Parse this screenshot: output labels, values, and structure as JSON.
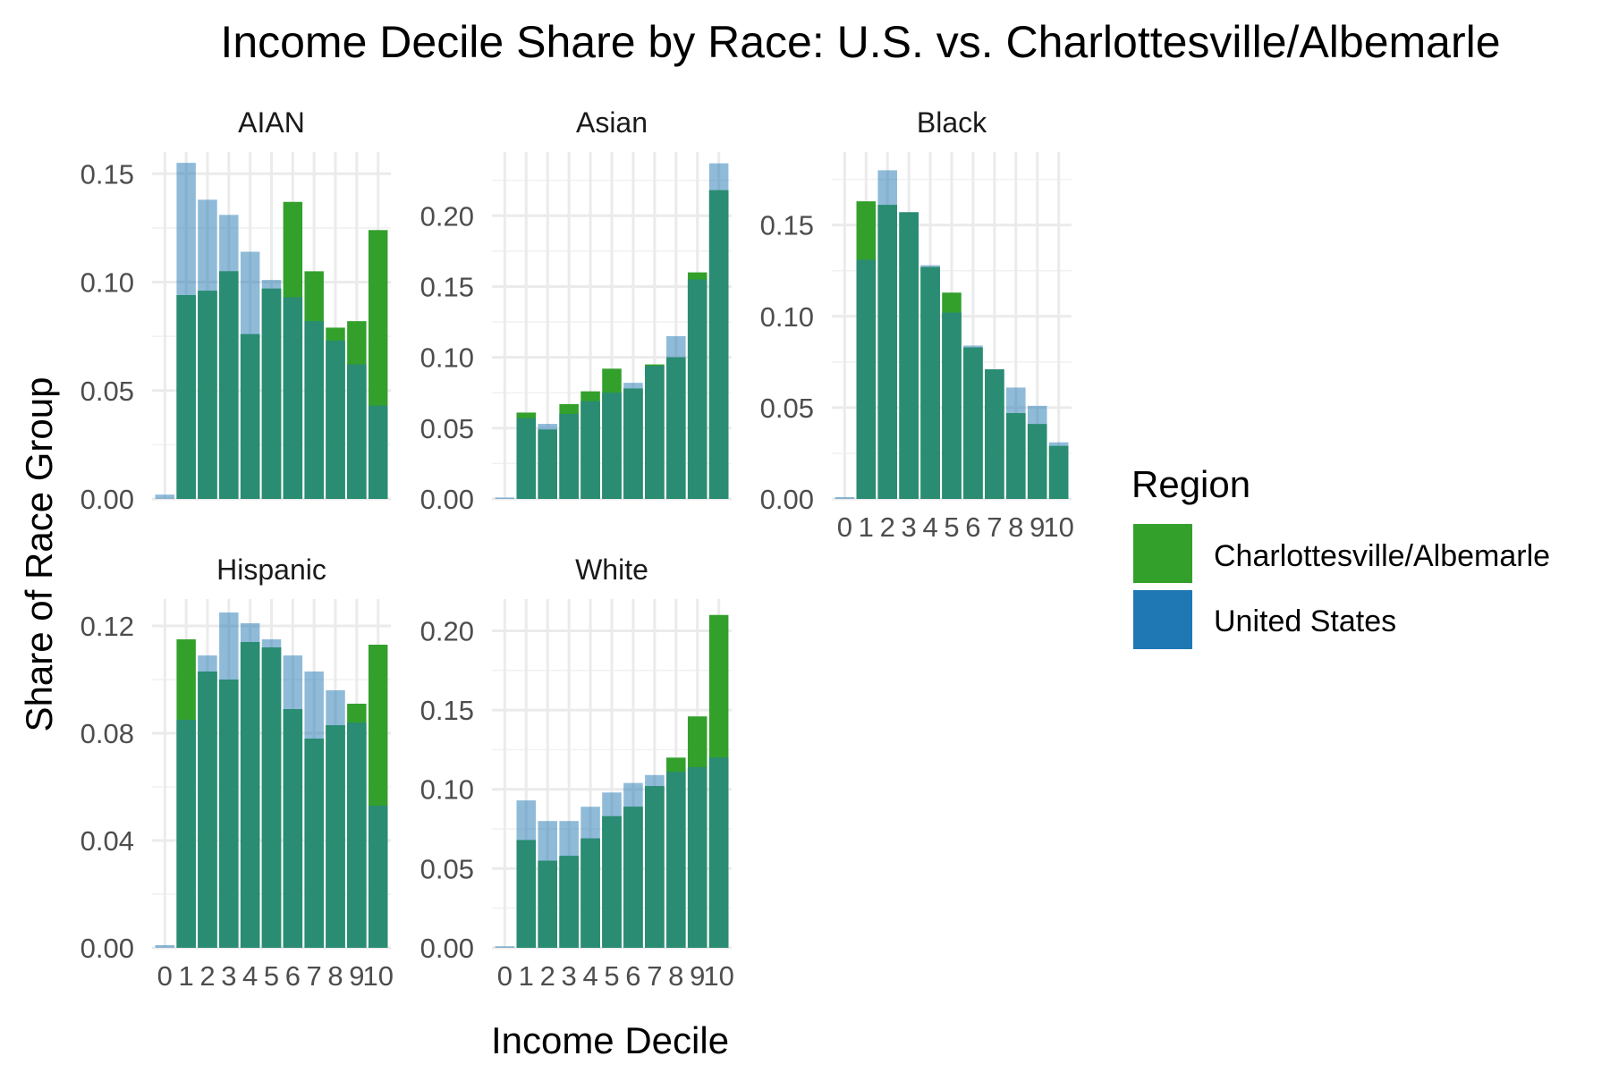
{
  "chart_data": {
    "type": "bar",
    "title": "Income Decile Share by Race: U.S. vs. Charlottesville/Albemarle",
    "xlabel": "Income Decile",
    "ylabel": "Share of Race Group",
    "x": [
      0,
      1,
      2,
      3,
      4,
      5,
      6,
      7,
      8,
      9,
      10
    ],
    "x_tick_labels": [
      "0",
      "1",
      "2",
      "3",
      "4",
      "5",
      "6",
      "7",
      "8",
      "9",
      "10"
    ],
    "grid": true,
    "legend": {
      "title": "Region",
      "position": "right",
      "entries": [
        {
          "label": "Charlottesville/Albemarle",
          "color": "#33a02c"
        },
        {
          "label": "United States",
          "color": "#1f78b4"
        }
      ]
    },
    "colors": {
      "local_fill": "#33a02c",
      "us_fill": "#1f78b4",
      "us_alpha": 0.5,
      "overlap_fill": "#2a8c72"
    },
    "panels": [
      {
        "name": "AIAN",
        "ylim": [
          0,
          0.16
        ],
        "y_ticks": [
          0,
          0.05,
          0.1,
          0.15
        ],
        "y_tick_labels": [
          "0.00",
          "0.05",
          "0.10",
          "0.15"
        ],
        "series": [
          {
            "name": "Charlottesville/Albemarle",
            "values": [
              0,
              0.094,
              0.096,
              0.105,
              0.076,
              0.097,
              0.137,
              0.105,
              0.079,
              0.082,
              0.124
            ]
          },
          {
            "name": "United States",
            "values": [
              0.002,
              0.155,
              0.138,
              0.131,
              0.114,
              0.101,
              0.093,
              0.082,
              0.073,
              0.062,
              0.043
            ]
          }
        ]
      },
      {
        "name": "Asian",
        "ylim": [
          0,
          0.245
        ],
        "y_ticks": [
          0,
          0.05,
          0.1,
          0.15,
          0.2
        ],
        "y_tick_labels": [
          "0.00",
          "0.05",
          "0.10",
          "0.15",
          "0.20"
        ],
        "series": [
          {
            "name": "Charlottesville/Albemarle",
            "values": [
              0,
              0.061,
              0.049,
              0.067,
              0.076,
              0.092,
              0.078,
              0.095,
              0.1,
              0.16,
              0.218
            ]
          },
          {
            "name": "United States",
            "values": [
              0.001,
              0.057,
              0.053,
              0.06,
              0.069,
              0.075,
              0.082,
              0.094,
              0.115,
              0.155,
              0.237
            ]
          }
        ]
      },
      {
        "name": "Black",
        "ylim": [
          0,
          0.19
        ],
        "y_ticks": [
          0,
          0.05,
          0.1,
          0.15
        ],
        "y_tick_labels": [
          "0.00",
          "0.05",
          "0.10",
          "0.15"
        ],
        "series": [
          {
            "name": "Charlottesville/Albemarle",
            "values": [
              0,
              0.163,
              0.161,
              0.157,
              0.127,
              0.113,
              0.083,
              0.071,
              0.047,
              0.041,
              0.029
            ]
          },
          {
            "name": "United States",
            "values": [
              0.001,
              0.131,
              0.18,
              0.157,
              0.128,
              0.102,
              0.084,
              0.071,
              0.061,
              0.051,
              0.031
            ]
          }
        ]
      },
      {
        "name": "Hispanic",
        "ylim": [
          0,
          0.13
        ],
        "y_ticks": [
          0,
          0.04,
          0.08,
          0.12
        ],
        "y_tick_labels": [
          "0.00",
          "0.04",
          "0.08",
          "0.12"
        ],
        "series": [
          {
            "name": "Charlottesville/Albemarle",
            "values": [
              0,
              0.115,
              0.103,
              0.1,
              0.114,
              0.112,
              0.089,
              0.078,
              0.083,
              0.091,
              0.113
            ]
          },
          {
            "name": "United States",
            "values": [
              0.001,
              0.085,
              0.109,
              0.125,
              0.121,
              0.115,
              0.109,
              0.103,
              0.096,
              0.084,
              0.053
            ]
          }
        ]
      },
      {
        "name": "White",
        "ylim": [
          0,
          0.22
        ],
        "y_ticks": [
          0,
          0.05,
          0.1,
          0.15,
          0.2
        ],
        "y_tick_labels": [
          "0.00",
          "0.05",
          "0.10",
          "0.15",
          "0.20"
        ],
        "series": [
          {
            "name": "Charlottesville/Albemarle",
            "values": [
              0,
              0.068,
              0.055,
              0.058,
              0.069,
              0.083,
              0.089,
              0.102,
              0.12,
              0.146,
              0.21
            ]
          },
          {
            "name": "United States",
            "values": [
              0.001,
              0.093,
              0.08,
              0.08,
              0.089,
              0.098,
              0.104,
              0.109,
              0.111,
              0.114,
              0.12
            ]
          }
        ]
      }
    ]
  }
}
